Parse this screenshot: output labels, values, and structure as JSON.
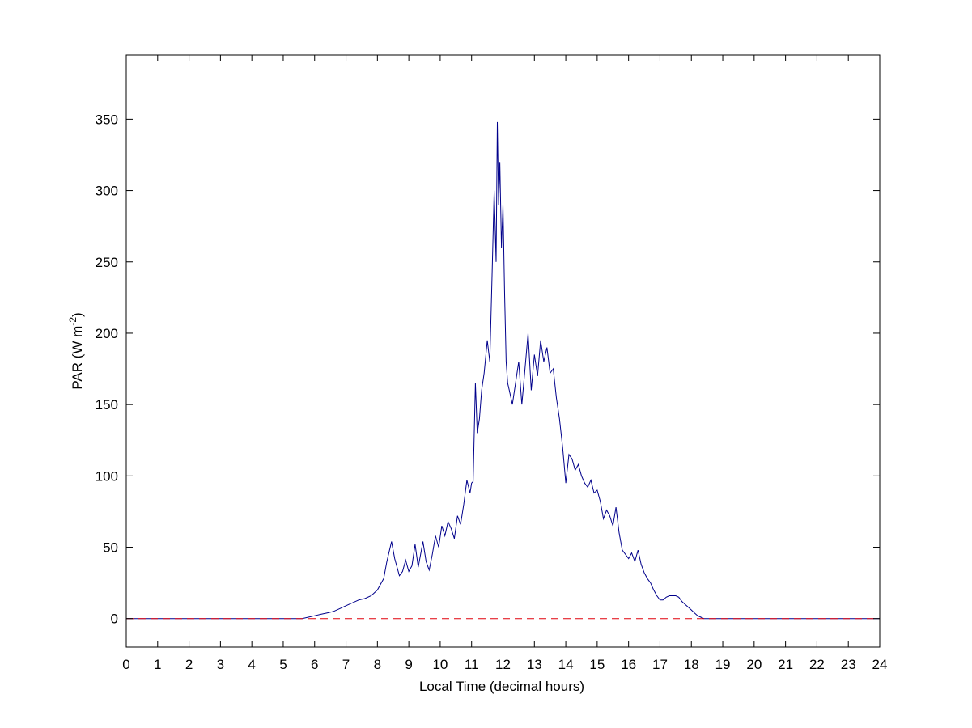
{
  "chart_data": {
    "type": "line",
    "title": "",
    "xlabel": "Local Time (decimal hours)",
    "ylabel": "PAR (W m",
    "ylabel_sup": "-2",
    "ylabel_close": ")",
    "xlim": [
      0,
      24
    ],
    "ylim": [
      -20,
      395
    ],
    "xticks": [
      0,
      1,
      2,
      3,
      4,
      5,
      6,
      7,
      8,
      9,
      10,
      11,
      12,
      13,
      14,
      15,
      16,
      17,
      18,
      19,
      20,
      21,
      22,
      23,
      24
    ],
    "yticks": [
      0,
      50,
      100,
      150,
      200,
      250,
      300,
      350
    ],
    "grid": false,
    "legend": "none",
    "series": [
      {
        "color": "#00008b",
        "style": "solid",
        "x": [
          0,
          5.6,
          5.8,
          6.0,
          6.2,
          6.4,
          6.6,
          6.8,
          7.0,
          7.2,
          7.4,
          7.6,
          7.8,
          8.0,
          8.2,
          8.3,
          8.45,
          8.55,
          8.7,
          8.8,
          8.9,
          9.0,
          9.1,
          9.2,
          9.3,
          9.45,
          9.55,
          9.65,
          9.75,
          9.85,
          9.95,
          10.05,
          10.15,
          10.25,
          10.35,
          10.45,
          10.55,
          10.65,
          10.75,
          10.85,
          10.95,
          11.0,
          11.05,
          11.12,
          11.18,
          11.25,
          11.32,
          11.4,
          11.5,
          11.58,
          11.65,
          11.72,
          11.78,
          11.82,
          11.86,
          11.9,
          11.95,
          12.0,
          12.05,
          12.1,
          12.15,
          12.2,
          12.3,
          12.4,
          12.5,
          12.6,
          12.7,
          12.8,
          12.9,
          13.0,
          13.1,
          13.2,
          13.3,
          13.4,
          13.5,
          13.6,
          13.7,
          13.8,
          13.9,
          14.0,
          14.1,
          14.2,
          14.3,
          14.4,
          14.5,
          14.6,
          14.7,
          14.8,
          14.9,
          15.0,
          15.1,
          15.2,
          15.3,
          15.4,
          15.5,
          15.6,
          15.7,
          15.8,
          15.9,
          16.0,
          16.1,
          16.2,
          16.3,
          16.4,
          16.5,
          16.6,
          16.7,
          16.8,
          16.9,
          17.0,
          17.1,
          17.2,
          17.3,
          17.4,
          17.5,
          17.6,
          17.7,
          17.8,
          17.9,
          18.0,
          18.1,
          18.2,
          18.3,
          18.4,
          18.5,
          24
        ],
        "y": [
          0,
          0,
          1,
          2,
          3,
          4,
          5,
          7,
          9,
          11,
          13,
          14,
          16,
          20,
          28,
          40,
          54,
          42,
          30,
          33,
          41,
          33,
          37,
          52,
          36,
          54,
          40,
          34,
          45,
          58,
          50,
          65,
          58,
          68,
          63,
          56,
          72,
          66,
          80,
          97,
          88,
          95,
          96,
          165,
          130,
          140,
          160,
          172,
          195,
          180,
          238,
          300,
          250,
          348,
          290,
          320,
          260,
          290,
          230,
          180,
          165,
          160,
          150,
          165,
          180,
          150,
          175,
          200,
          160,
          185,
          170,
          195,
          180,
          190,
          172,
          175,
          155,
          140,
          120,
          95,
          115,
          112,
          104,
          108,
          100,
          95,
          92,
          97,
          88,
          90,
          82,
          70,
          76,
          72,
          65,
          78,
          60,
          48,
          45,
          42,
          46,
          40,
          48,
          38,
          32,
          28,
          25,
          20,
          16,
          13,
          13,
          15,
          16,
          16,
          16,
          15,
          12,
          10,
          8,
          6,
          4,
          2,
          1,
          0,
          0,
          0
        ]
      },
      {
        "color": "#e0000b",
        "style": "dashed",
        "x": [
          0,
          24
        ],
        "y": [
          0,
          0
        ]
      }
    ]
  }
}
